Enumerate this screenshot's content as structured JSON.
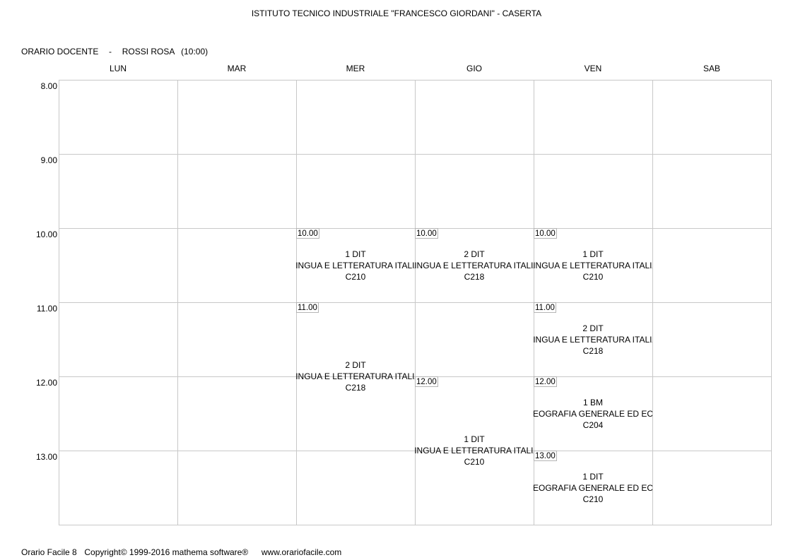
{
  "header": {
    "school": "ISTITUTO TECNICO INDUSTRIALE \"FRANCESCO GIORDANI\" - CASERTA",
    "schedule_label": "ORARIO DOCENTE",
    "separator": "-",
    "teacher": "ROSSI ROSA",
    "hours_total": "(10:00)"
  },
  "days": [
    "LUN",
    "MAR",
    "MER",
    "GIO",
    "VEN",
    "SAB"
  ],
  "hours": [
    "8.00",
    "9.00",
    "10.00",
    "11.00",
    "12.00",
    "13.00"
  ],
  "lessons": [
    {
      "day": "MER",
      "start": "10.00",
      "class": "1 DIT",
      "subject": "LINGUA E LETTERATURA ITALIA",
      "room": "C210"
    },
    {
      "day": "MER",
      "start": "11.00",
      "class": "2 DIT",
      "subject": "LINGUA E LETTERATURA ITALIA",
      "room": "C218"
    },
    {
      "day": "GIO",
      "start": "10.00",
      "class": "2 DIT",
      "subject": "LINGUA E LETTERATURA ITALIA",
      "room": "C218"
    },
    {
      "day": "GIO",
      "start": "12.00",
      "class": "1 DIT",
      "subject": "LINGUA E LETTERATURA ITALIA",
      "room": "C210"
    },
    {
      "day": "VEN",
      "start": "10.00",
      "class": "1 DIT",
      "subject": "LINGUA E LETTERATURA ITALIA",
      "room": "C210"
    },
    {
      "day": "VEN",
      "start": "11.00",
      "class": "2 DIT",
      "subject": "LINGUA E LETTERATURA ITALIA",
      "room": "C218"
    },
    {
      "day": "VEN",
      "start": "12.00",
      "class": "1 BM",
      "subject": "GEOGRAFIA GENERALE ED ECO",
      "room": "C204"
    },
    {
      "day": "VEN",
      "start": "13.00",
      "class": "1 DIT",
      "subject": "GEOGRAFIA GENERALE ED ECO",
      "room": "C210"
    }
  ],
  "footer": {
    "product": "Orario Facile 8",
    "copyright": "Copyright© 1999-2016 mathema software®",
    "website": "www.orariofacile.com"
  }
}
